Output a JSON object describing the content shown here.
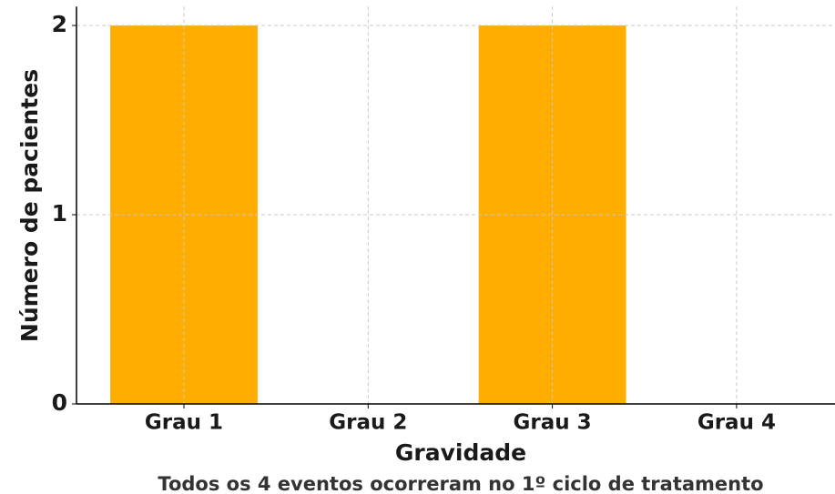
{
  "chart_data": {
    "type": "bar",
    "categories": [
      "Grau 1",
      "Grau 2",
      "Grau 3",
      "Grau 4"
    ],
    "values": [
      2,
      0,
      2,
      0
    ],
    "color": "#ffad00",
    "ylim": [
      0,
      2.1
    ],
    "yticks": [
      0,
      1,
      2
    ],
    "xlabel": "Gravidade",
    "ylabel": "Número de pacientes",
    "annotation": "Todos os 4 eventos ocorreram no 1º ciclo de tratamento",
    "grid": true
  }
}
